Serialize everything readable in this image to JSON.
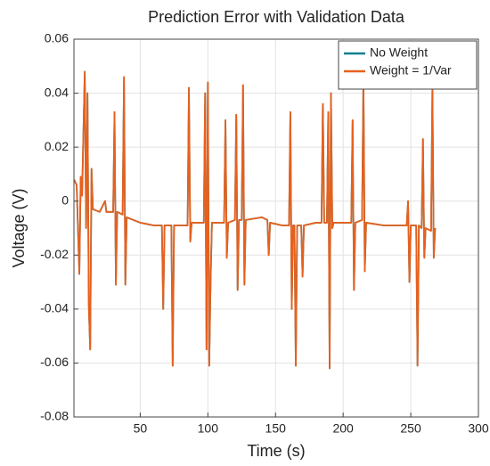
{
  "chart_data": {
    "type": "line",
    "title": "Prediction Error with Validation Data",
    "x_label": "Time (s)",
    "y_label": "Voltage (V)",
    "x": [
      1,
      3,
      5,
      6,
      7,
      9,
      10,
      11,
      12,
      13,
      14,
      15,
      20,
      24,
      25,
      30,
      31,
      32,
      33,
      37,
      38,
      39,
      40,
      50,
      60,
      66,
      67,
      68,
      73,
      74,
      75,
      85,
      86,
      87,
      88,
      97,
      98,
      99,
      100,
      101,
      102,
      103,
      112,
      113,
      114,
      115,
      120,
      121,
      122,
      123,
      125,
      126,
      127,
      128,
      140,
      144,
      145,
      146,
      155,
      160,
      161,
      162,
      163,
      164,
      165,
      166,
      169,
      170,
      171,
      180,
      184,
      185,
      186,
      188,
      189,
      190,
      191,
      192,
      193,
      206,
      207,
      208,
      209,
      214,
      215,
      216,
      217,
      230,
      247,
      248,
      249,
      250,
      254,
      255,
      256,
      258,
      259,
      260,
      261,
      265,
      266,
      267,
      268
    ],
    "series": [
      {
        "name": "No Weight",
        "color": "#0f7f8f",
        "values": [
          0.008,
          0.006,
          -0.027,
          0.009,
          0.002,
          0.048,
          -0.01,
          0.04,
          -0.039,
          -0.055,
          0.012,
          -0.003,
          -0.004,
          0.0,
          -0.004,
          -0.004,
          0.033,
          -0.031,
          -0.004,
          -0.005,
          0.046,
          -0.031,
          -0.006,
          -0.008,
          -0.009,
          -0.009,
          -0.04,
          -0.009,
          -0.009,
          -0.061,
          -0.009,
          -0.009,
          0.042,
          -0.015,
          -0.008,
          -0.008,
          0.04,
          -0.055,
          0.044,
          -0.061,
          -0.03,
          -0.008,
          -0.008,
          0.03,
          -0.021,
          -0.008,
          -0.007,
          0.032,
          -0.033,
          -0.007,
          -0.007,
          0.043,
          -0.031,
          -0.007,
          -0.006,
          -0.007,
          -0.02,
          -0.008,
          -0.009,
          -0.009,
          0.033,
          -0.04,
          -0.009,
          -0.009,
          -0.061,
          -0.009,
          -0.009,
          -0.028,
          -0.009,
          -0.008,
          -0.008,
          0.036,
          -0.008,
          -0.008,
          0.033,
          -0.062,
          0.04,
          -0.01,
          -0.008,
          -0.008,
          0.03,
          -0.033,
          -0.008,
          -0.007,
          0.046,
          -0.026,
          -0.008,
          -0.009,
          -0.009,
          0.0,
          -0.03,
          -0.009,
          -0.009,
          -0.061,
          -0.009,
          -0.01,
          0.023,
          -0.021,
          -0.01,
          -0.011,
          0.042,
          -0.021,
          -0.01
        ]
      },
      {
        "name": "Weight = 1/Var",
        "color": "#e8601c",
        "values": [
          0.008,
          0.006,
          -0.027,
          0.009,
          0.002,
          0.048,
          -0.01,
          0.04,
          -0.039,
          -0.055,
          0.012,
          -0.003,
          -0.004,
          0.0,
          -0.004,
          -0.004,
          0.033,
          -0.031,
          -0.004,
          -0.005,
          0.046,
          -0.031,
          -0.006,
          -0.008,
          -0.009,
          -0.009,
          -0.04,
          -0.009,
          -0.009,
          -0.061,
          -0.009,
          -0.009,
          0.042,
          -0.015,
          -0.008,
          -0.008,
          0.04,
          -0.055,
          0.044,
          -0.061,
          -0.03,
          -0.008,
          -0.008,
          0.03,
          -0.021,
          -0.008,
          -0.007,
          0.032,
          -0.033,
          -0.007,
          -0.007,
          0.043,
          -0.031,
          -0.007,
          -0.006,
          -0.007,
          -0.02,
          -0.008,
          -0.009,
          -0.009,
          0.033,
          -0.04,
          -0.009,
          -0.009,
          -0.061,
          -0.009,
          -0.009,
          -0.028,
          -0.009,
          -0.008,
          -0.008,
          0.036,
          -0.008,
          -0.008,
          0.033,
          -0.062,
          0.04,
          -0.01,
          -0.008,
          -0.008,
          0.03,
          -0.033,
          -0.008,
          -0.007,
          0.046,
          -0.026,
          -0.008,
          -0.009,
          -0.009,
          0.0,
          -0.03,
          -0.009,
          -0.009,
          -0.061,
          -0.009,
          -0.01,
          0.023,
          -0.021,
          -0.01,
          -0.011,
          0.042,
          -0.021,
          -0.01
        ]
      }
    ],
    "xlim": [
      1,
      300
    ],
    "xticks": [
      50,
      100,
      150,
      200,
      250,
      300
    ],
    "ylim": [
      -0.08,
      0.06
    ],
    "yticks": [
      -0.08,
      -0.06,
      -0.04,
      -0.02,
      0,
      0.02,
      0.04,
      0.06
    ],
    "grid": true,
    "legend": "upper right"
  }
}
